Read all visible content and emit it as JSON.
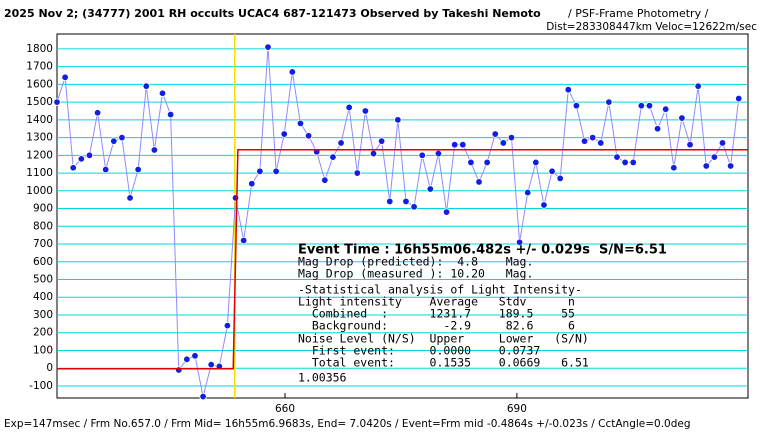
{
  "chart_data": {
    "type": "scatter",
    "title": "2025 Nov 2; (34777) 2001 RH occults UCAC4 687-121473 Observed by Takeshi Nemoto",
    "subtitle": "/ PSF-Frame Photometry /",
    "subtitle2": "Dist=283308447km Veloc=12622m/sec",
    "footer": "Exp=147msec / Frm No.657.0 / Frm Mid= 16h55m6.9683s, End= 7.0420s / Event=Frm mid -0.4864s +/-0.023s / CctAngle=0.0deg",
    "annotations": [
      "Event Time : 16h55m06.482s +/- 0.029s  S/N=6.51",
      "Mag Drop (predicted):  4.8    Mag.",
      "Mag Drop (measured ): 10.20   Mag.",
      "-Statistical analysis of Light Intensity-",
      "Light intensity    Average   Stdv      n",
      "  Combined  :      1231.7    189.5    55",
      "  Background:        -2.9     82.6     6",
      "Noise Level (N/S)  Upper     Lower   (S/N)",
      "  First event:     0.0000    0.0737",
      "  Total event:     0.1535    0.0669   6.51",
      "1.00356"
    ],
    "xlim": [
      630.5,
      719.9
    ],
    "xticks": [
      660,
      690
    ],
    "ylim": [
      -168,
      1884
    ],
    "yticks": [
      -100,
      0,
      100,
      200,
      300,
      400,
      500,
      600,
      700,
      800,
      900,
      1000,
      1100,
      1200,
      1300,
      1400,
      1500,
      1600,
      1700,
      1800
    ],
    "grid": true,
    "grid_color": "#00d8e0",
    "event_x": 653.5,
    "event_color": "#f0e000",
    "series": [
      {
        "color": "#1020e0",
        "line_color": "#8c8cff",
        "x": [
          630.5,
          631.55,
          632.6,
          633.65,
          634.7,
          635.75,
          636.8,
          637.85,
          638.9,
          639.95,
          641,
          642.05,
          643.1,
          644.15,
          645.2,
          646.25,
          647.3,
          648.35,
          649.4,
          650.45,
          651.5,
          652.55,
          653.6,
          654.65,
          655.7,
          656.75,
          657.8,
          658.85,
          659.9,
          660.95,
          662,
          663.05,
          664.1,
          665.15,
          666.2,
          667.25,
          668.3,
          669.35,
          670.4,
          671.45,
          672.5,
          673.55,
          674.6,
          675.65,
          676.7,
          677.75,
          678.8,
          679.85,
          680.9,
          681.95,
          683,
          684.05,
          685.1,
          686.15,
          687.2,
          688.25,
          689.3,
          690.35,
          691.4,
          692.45,
          693.5,
          694.55,
          695.6,
          696.65,
          697.7,
          698.75,
          699.8,
          700.85,
          701.9,
          702.95,
          704,
          705.05,
          706.1,
          707.15,
          708.2,
          709.25,
          710.3,
          711.35,
          712.4,
          713.45,
          714.5,
          715.55,
          716.6,
          717.65,
          718.7
        ],
        "values": [
          1500,
          1640,
          1130,
          1180,
          1200,
          1440,
          1120,
          1280,
          1300,
          960,
          1120,
          1590,
          1230,
          1550,
          1430,
          -10,
          50,
          70,
          -160,
          20,
          10,
          240,
          960,
          720,
          1040,
          1110,
          1810,
          1110,
          1320,
          1670,
          1380,
          1310,
          1220,
          1060,
          1190,
          1270,
          1470,
          1100,
          1450,
          1210,
          1280,
          940,
          1400,
          940,
          910,
          1200,
          1010,
          1210,
          880,
          1260,
          1260,
          1160,
          1050,
          1160,
          1320,
          1270,
          1300,
          710,
          990,
          1160,
          920,
          1110,
          1070,
          1570,
          1480,
          1280,
          1300,
          1270,
          1500,
          1190,
          1160,
          1160,
          1480,
          1480,
          1350,
          1460,
          1130,
          1410,
          1260,
          1590,
          1140,
          1190,
          1270,
          1140,
          1520
        ]
      },
      {
        "color": "#e00000",
        "line_color": "#e00000",
        "x": [
          630.5,
          653.3,
          653.9,
          719.9
        ],
        "values": [
          -2.9,
          -2.9,
          1231.7,
          1231.7
        ]
      }
    ]
  }
}
